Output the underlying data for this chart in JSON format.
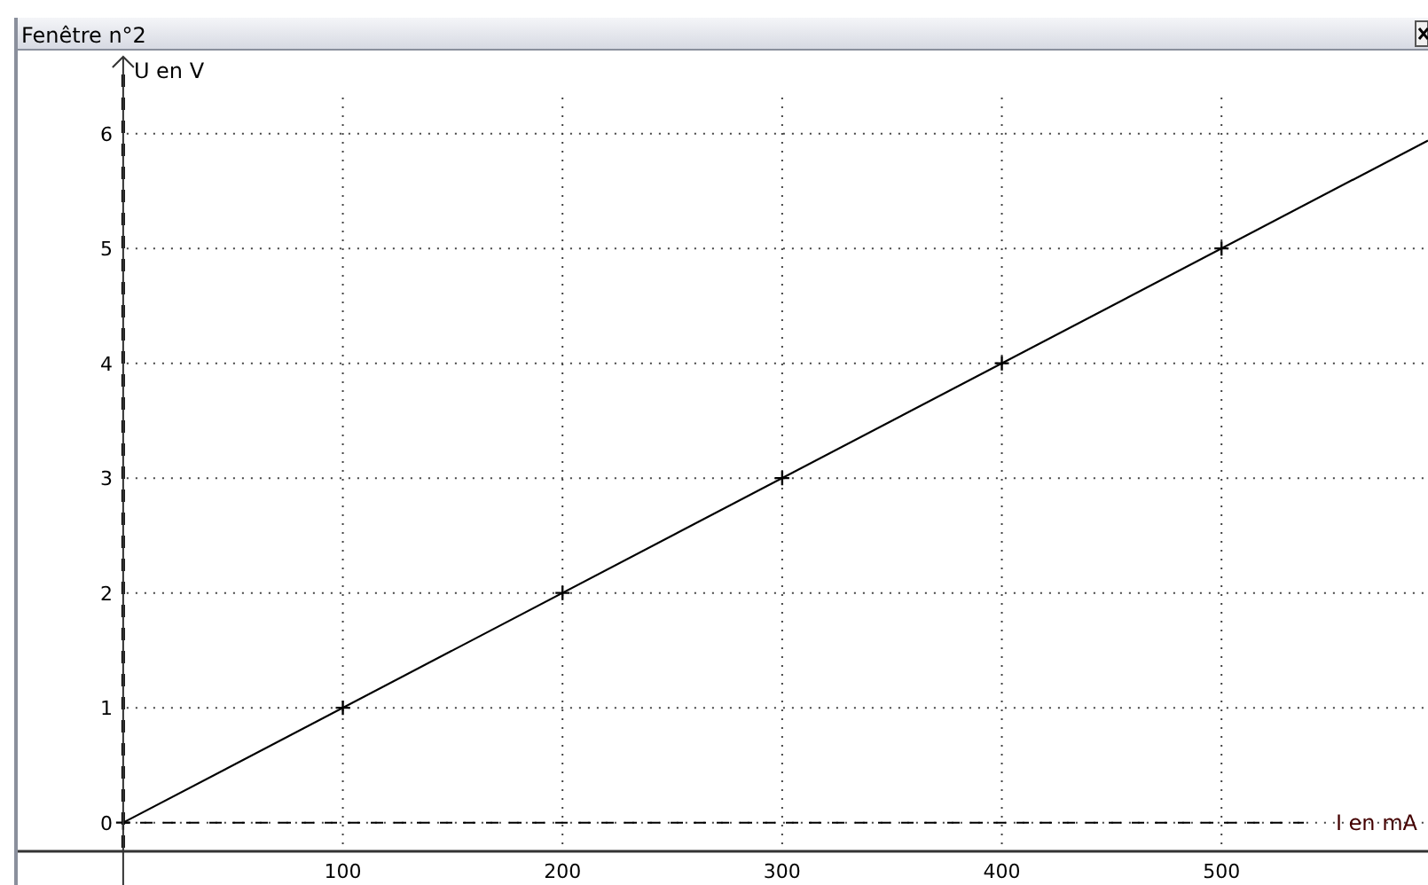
{
  "chart_data": {
    "type": "scatter",
    "title": "Fenêtre n°2",
    "xlabel": "I en mA",
    "ylabel": "U en V",
    "series": [
      {
        "color": "#000000",
        "marker": "cross",
        "x": [
          0,
          100,
          200,
          300,
          400,
          500
        ],
        "values": [
          0,
          1,
          2,
          3,
          4,
          5
        ]
      },
      {
        "type": "line",
        "color": "#000000",
        "marker": "none",
        "line_style": "solid",
        "x": [
          0,
          594
        ],
        "values": [
          0,
          5.94
        ]
      }
    ],
    "xlim": [
      -48,
      594
    ],
    "xticks": [
      100,
      200,
      300,
      400,
      500
    ],
    "ylim": [
      -0.25,
      6.7
    ],
    "yticks": [
      0,
      1,
      2,
      3,
      4,
      5,
      6
    ],
    "grid": true,
    "ref_lines": [
      {
        "axis": "x",
        "value": 0,
        "line_style": "dashed",
        "color": "#000000"
      },
      {
        "axis": "y",
        "value": 0,
        "line_style": "dashed",
        "color": "#000000"
      }
    ]
  }
}
